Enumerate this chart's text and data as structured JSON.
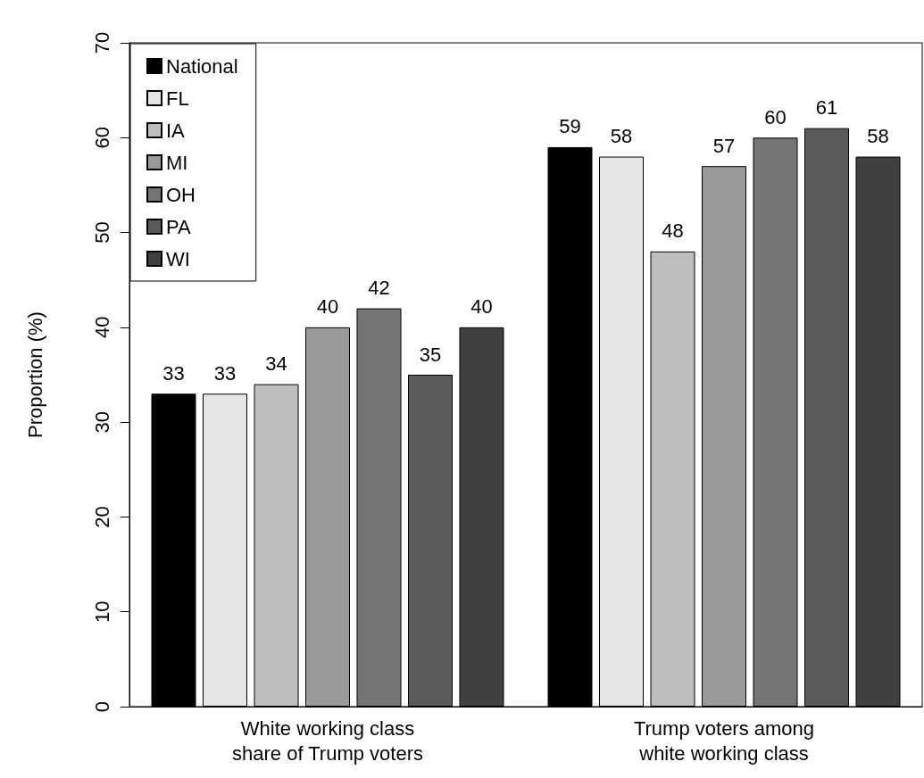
{
  "chart_data": {
    "type": "bar",
    "categories": [
      "White working class\nshare of Trump voters",
      "Trump voters among\nwhite working class"
    ],
    "ylabel": "Proportion (%)",
    "series": [
      {
        "name": "National",
        "color": "#000000",
        "values": [
          33,
          59
        ]
      },
      {
        "name": "FL",
        "color": "#e6e6e6",
        "values": [
          33,
          58
        ]
      },
      {
        "name": "IA",
        "color": "#bebebe",
        "values": [
          34,
          48
        ]
      },
      {
        "name": "MI",
        "color": "#9a9a9a",
        "values": [
          40,
          57
        ]
      },
      {
        "name": "OH",
        "color": "#747474",
        "values": [
          42,
          60
        ]
      },
      {
        "name": "PA",
        "color": "#5a5a5a",
        "values": [
          35,
          61
        ]
      },
      {
        "name": "WI",
        "color": "#404040",
        "values": [
          40,
          58
        ]
      }
    ],
    "ylim": [
      0,
      70
    ],
    "yticks": [
      0,
      10,
      20,
      30,
      40,
      50,
      60,
      70
    ],
    "data_labels": true,
    "legend": "top left",
    "grid": false
  }
}
